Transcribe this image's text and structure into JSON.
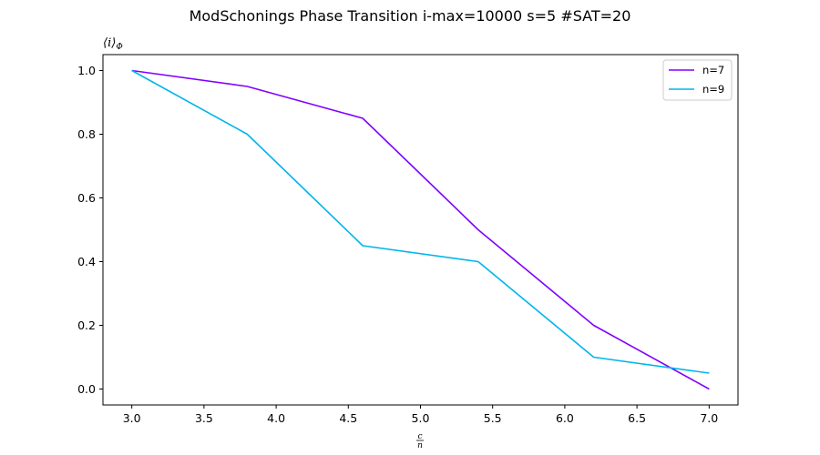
{
  "chart_data": {
    "type": "line",
    "title": "ModSchonings Phase Transition  i-max=10000 s=5 #SAT=20",
    "ylabel": "⟨i⟩",
    "ylabel_sub": "Φ",
    "xlabel_num": "c",
    "xlabel_den": "n",
    "xlim": [
      2.8,
      7.2
    ],
    "ylim": [
      -0.05,
      1.05
    ],
    "xticks": [
      3.0,
      3.5,
      4.0,
      4.5,
      5.0,
      5.5,
      6.0,
      6.5,
      7.0
    ],
    "xtick_labels": [
      "3.0",
      "3.5",
      "4.0",
      "4.5",
      "5.0",
      "5.5",
      "6.0",
      "6.5",
      "7.0"
    ],
    "yticks": [
      0.0,
      0.2,
      0.4,
      0.6,
      0.8,
      1.0
    ],
    "ytick_labels": [
      "0.0",
      "0.2",
      "0.4",
      "0.6",
      "0.8",
      "1.0"
    ],
    "grid": false,
    "legend_position": "top-right",
    "series": [
      {
        "name": "n=7",
        "color": "#8000ff",
        "x": [
          3.0,
          3.8,
          4.6,
          5.4,
          6.2,
          7.0
        ],
        "y": [
          1.0,
          0.95,
          0.85,
          0.5,
          0.2,
          0.0
        ]
      },
      {
        "name": "n=9",
        "color": "#00b5eb",
        "x": [
          3.0,
          3.8,
          4.6,
          5.4,
          6.2,
          7.0
        ],
        "y": [
          1.0,
          0.8,
          0.45,
          0.4,
          0.1,
          0.05
        ]
      }
    ]
  }
}
